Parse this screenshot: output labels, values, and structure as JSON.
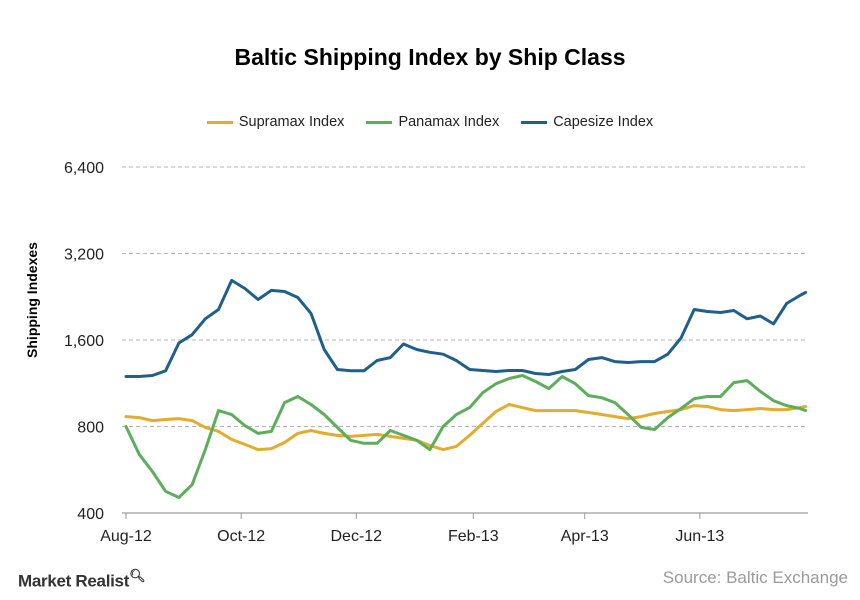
{
  "chart_data": {
    "type": "line",
    "title": "Baltic Shipping Index by Ship Class",
    "ylabel": "Shipping Indexes",
    "xlabel": "",
    "yscale": "log2",
    "ylim": [
      400,
      6400
    ],
    "yticks": [
      400,
      800,
      1600,
      3200,
      6400
    ],
    "ytick_labels": [
      "400",
      "800",
      "1,600",
      "3,200",
      "6,400"
    ],
    "xlim": [
      "2012-08-01",
      "2013-07-27"
    ],
    "xticks": [
      "2012-08-01",
      "2012-10-01",
      "2012-12-01",
      "2013-02-01",
      "2013-04-01",
      "2013-06-01"
    ],
    "xtick_labels": [
      "Aug-12",
      "Oct-12",
      "Dec-12",
      "Feb-13",
      "Apr-13",
      "Jun-13"
    ],
    "grid": "horizontal dashed",
    "legend_position": "top",
    "x": [
      "2012-08-01",
      "2012-08-08",
      "2012-08-15",
      "2012-08-22",
      "2012-08-29",
      "2012-09-05",
      "2012-09-12",
      "2012-09-19",
      "2012-09-26",
      "2012-10-03",
      "2012-10-10",
      "2012-10-17",
      "2012-10-24",
      "2012-10-31",
      "2012-11-07",
      "2012-11-14",
      "2012-11-21",
      "2012-11-28",
      "2012-12-05",
      "2012-12-12",
      "2012-12-19",
      "2012-12-26",
      "2013-01-02",
      "2013-01-09",
      "2013-01-16",
      "2013-01-23",
      "2013-01-30",
      "2013-02-06",
      "2013-02-13",
      "2013-02-20",
      "2013-02-27",
      "2013-03-06",
      "2013-03-13",
      "2013-03-20",
      "2013-03-27",
      "2013-04-03",
      "2013-04-10",
      "2013-04-17",
      "2013-04-24",
      "2013-05-01",
      "2013-05-08",
      "2013-05-15",
      "2013-05-22",
      "2013-05-29",
      "2013-06-05",
      "2013-06-12",
      "2013-06-19",
      "2013-06-26",
      "2013-07-03",
      "2013-07-10",
      "2013-07-17",
      "2013-07-24",
      "2013-07-27"
    ],
    "series": [
      {
        "name": "Supramax Index",
        "color": "#E3AC2E",
        "values": [
          866,
          859,
          839,
          846,
          852,
          839,
          794,
          769,
          721,
          693,
          665,
          670,
          704,
          757,
          775,
          757,
          745,
          739,
          745,
          751,
          739,
          727,
          716,
          687,
          665,
          682,
          745,
          820,
          902,
          954,
          931,
          909,
          909,
          909,
          909,
          895,
          881,
          866,
          852,
          866,
          888,
          902,
          916,
          946,
          939,
          916,
          909,
          916,
          924,
          916,
          916,
          931,
          939
        ]
      },
      {
        "name": "Panamax Index",
        "color": "#5DAE5B",
        "values": [
          800,
          640,
          558,
          476,
          453,
          502,
          665,
          909,
          880,
          806,
          757,
          769,
          969,
          1017,
          954,
          881,
          794,
          716,
          699,
          699,
          775,
          745,
          716,
          665,
          800,
          880,
          931,
          1050,
          1127,
          1175,
          1204,
          1147,
          1084,
          1194,
          1127,
          1025,
          1008,
          969,
          880,
          794,
          781,
          859,
          924,
          1000,
          1017,
          1017,
          1137,
          1156,
          1060,
          984,
          946,
          924,
          909
        ]
      },
      {
        "name": "Capesize Index",
        "color": "#1F5F8B",
        "values": [
          1194,
          1194,
          1204,
          1250,
          1562,
          1670,
          1896,
          2043,
          2580,
          2418,
          2214,
          2380,
          2360,
          2250,
          1980,
          1483,
          1263,
          1250,
          1250,
          1358,
          1390,
          1550,
          1483,
          1450,
          1428,
          1358,
          1263,
          1253,
          1243,
          1253,
          1253,
          1223,
          1214,
          1243,
          1263,
          1368,
          1390,
          1346,
          1336,
          1346,
          1346,
          1428,
          1626,
          2043,
          2010,
          1995,
          2026,
          1896,
          1940,
          1820,
          2145,
          2285,
          2343
        ]
      }
    ]
  },
  "footer": {
    "brand": "Market Realist",
    "source": "Source: Baltic Exchange"
  }
}
